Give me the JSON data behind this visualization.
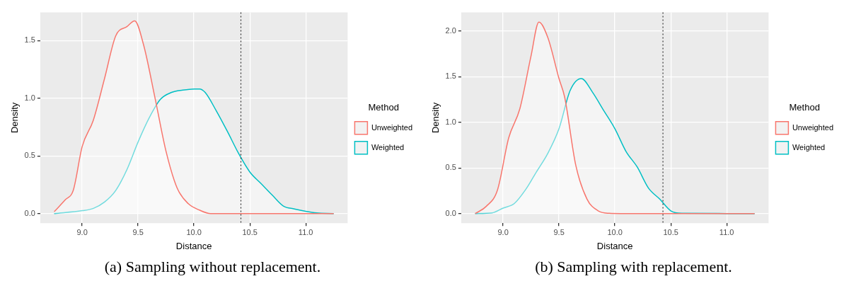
{
  "chart_data": [
    {
      "type": "area",
      "xlabel": "Distance",
      "ylabel": "Density",
      "legend_title": "Method",
      "legend": "right",
      "grid": true,
      "xlim": [
        8.625,
        11.375
      ],
      "xticks": [
        {
          "value": 9,
          "label": "9.0"
        },
        {
          "value": 9.5,
          "label": "9.5"
        },
        {
          "value": 10,
          "label": "10.0"
        },
        {
          "value": 10.5,
          "label": "10.5"
        },
        {
          "value": 11,
          "label": "11.0"
        }
      ],
      "ylim": [
        -0.083,
        1.743
      ],
      "yticks": [
        {
          "value": 0,
          "label": "0.0"
        },
        {
          "value": 0.5,
          "label": "0.5"
        },
        {
          "value": 1,
          "label": "1.0"
        },
        {
          "value": 1.5,
          "label": "1.5"
        }
      ],
      "ref_lines": [
        {
          "axis": "x",
          "value": 10.42,
          "color": "#333333",
          "line_style": "dotted"
        }
      ],
      "annotations": [
        "(a) Sampling without replacement."
      ],
      "series": [
        {
          "name": "Unweighted",
          "color": "#f8766d",
          "x": [
            8.75,
            8.85,
            8.92,
            9.0,
            9.1,
            9.2,
            9.3,
            9.4,
            9.47,
            9.55,
            9.65,
            9.75,
            9.85,
            9.95,
            10.05,
            10.15,
            11.25
          ],
          "values": [
            0.016,
            0.12,
            0.2,
            0.58,
            0.81,
            1.17,
            1.54,
            1.62,
            1.67,
            1.46,
            1.01,
            0.54,
            0.22,
            0.085,
            0.03,
            0,
            0
          ]
        },
        {
          "name": "Weighted",
          "color": "#00bfc4",
          "x": [
            8.75,
            9.0,
            9.1,
            9.2,
            9.3,
            9.4,
            9.5,
            9.6,
            9.7,
            9.8,
            9.9,
            10.0,
            10.05,
            10.1,
            10.2,
            10.3,
            10.4,
            10.5,
            10.6,
            10.7,
            10.8,
            10.9,
            11.0,
            11.1,
            11.25
          ],
          "values": [
            0,
            0.025,
            0.045,
            0.1,
            0.2,
            0.38,
            0.62,
            0.83,
            0.99,
            1.05,
            1.07,
            1.08,
            1.08,
            1.05,
            0.89,
            0.71,
            0.52,
            0.36,
            0.26,
            0.16,
            0.065,
            0.04,
            0.02,
            0.006,
            0
          ]
        }
      ]
    },
    {
      "type": "area",
      "xlabel": "Distance",
      "ylabel": "Density",
      "legend_title": "Method",
      "legend": "right",
      "grid": true,
      "xlim": [
        8.625,
        11.375
      ],
      "xticks": [
        {
          "value": 9,
          "label": "9.0"
        },
        {
          "value": 9.5,
          "label": "9.5"
        },
        {
          "value": 10,
          "label": "10.0"
        },
        {
          "value": 10.5,
          "label": "10.5"
        },
        {
          "value": 11,
          "label": "11.0"
        }
      ],
      "ylim": [
        -0.105,
        2.205
      ],
      "yticks": [
        {
          "value": 0,
          "label": "0.0"
        },
        {
          "value": 0.5,
          "label": "0.5"
        },
        {
          "value": 1,
          "label": "1.0"
        },
        {
          "value": 1.5,
          "label": "1.5"
        },
        {
          "value": 2,
          "label": "2.0"
        }
      ],
      "ref_lines": [
        {
          "axis": "x",
          "value": 10.43,
          "color": "#333333",
          "line_style": "dotted"
        }
      ],
      "annotations": [
        "(b) Sampling with replacement."
      ],
      "series": [
        {
          "name": "Unweighted",
          "color": "#f8766d",
          "x": [
            8.75,
            8.85,
            8.95,
            9.05,
            9.15,
            9.25,
            9.32,
            9.4,
            9.5,
            9.55,
            9.65,
            9.75,
            9.85,
            9.95,
            10.05,
            11.25
          ],
          "values": [
            0,
            0.08,
            0.26,
            0.83,
            1.15,
            1.73,
            2.1,
            1.93,
            1.48,
            1.28,
            0.53,
            0.16,
            0.03,
            0.003,
            0,
            0
          ]
        },
        {
          "name": "Weighted",
          "color": "#00bfc4",
          "x": [
            8.75,
            8.9,
            9.0,
            9.1,
            9.2,
            9.3,
            9.4,
            9.5,
            9.6,
            9.7,
            9.8,
            9.9,
            10.0,
            10.1,
            10.2,
            10.3,
            10.4,
            10.5,
            10.6,
            11.25
          ],
          "values": [
            0,
            0.007,
            0.06,
            0.11,
            0.26,
            0.46,
            0.66,
            0.93,
            1.35,
            1.48,
            1.33,
            1.13,
            0.93,
            0.68,
            0.51,
            0.28,
            0.16,
            0.03,
            0.003,
            0
          ]
        }
      ]
    }
  ]
}
